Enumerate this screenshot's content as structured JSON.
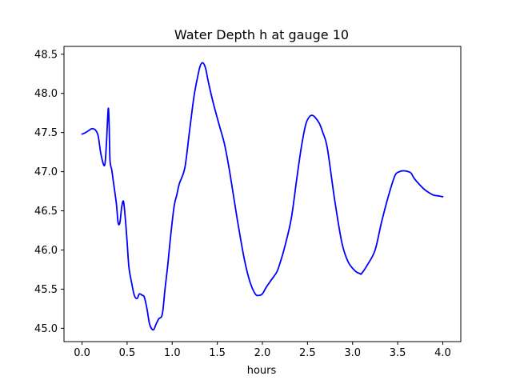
{
  "chart_data": {
    "type": "line",
    "title": "Water Depth h at gauge 10",
    "xlabel": "hours",
    "ylabel": "",
    "xlim": [
      -0.2,
      4.2
    ],
    "ylim": [
      44.83,
      48.6
    ],
    "xticks": [
      0.0,
      0.5,
      1.0,
      1.5,
      2.0,
      2.5,
      3.0,
      3.5,
      4.0
    ],
    "xtick_labels": [
      "0.0",
      "0.5",
      "1.0",
      "1.5",
      "2.0",
      "2.5",
      "3.0",
      "3.5",
      "4.0"
    ],
    "yticks": [
      45.0,
      45.5,
      46.0,
      46.5,
      47.0,
      47.5,
      48.0,
      48.5
    ],
    "ytick_labels": [
      "45.0",
      "45.5",
      "46.0",
      "46.5",
      "47.0",
      "47.5",
      "48.0",
      "48.5"
    ],
    "grid": false,
    "legend": "none",
    "series": [
      {
        "color": "#0000ff",
        "x": [
          0.0,
          0.04,
          0.08,
          0.11,
          0.15,
          0.18,
          0.21,
          0.25,
          0.27,
          0.29,
          0.3,
          0.31,
          0.33,
          0.35,
          0.38,
          0.4,
          0.42,
          0.44,
          0.46,
          0.48,
          0.5,
          0.52,
          0.55,
          0.58,
          0.61,
          0.63,
          0.64,
          0.67,
          0.69,
          0.72,
          0.75,
          0.79,
          0.82,
          0.85,
          0.89,
          0.92,
          0.95,
          0.98,
          1.02,
          1.05,
          1.08,
          1.14,
          1.19,
          1.24,
          1.28,
          1.31,
          1.34,
          1.37,
          1.4,
          1.45,
          1.52,
          1.58,
          1.64,
          1.72,
          1.8,
          1.86,
          1.92,
          1.96,
          2.0,
          2.04,
          2.1,
          2.16,
          2.2,
          2.25,
          2.32,
          2.38,
          2.43,
          2.48,
          2.52,
          2.55,
          2.58,
          2.63,
          2.67,
          2.72,
          2.8,
          2.88,
          2.95,
          3.03,
          3.08,
          3.1,
          3.17,
          3.25,
          3.32,
          3.4,
          3.47,
          3.52,
          3.55,
          3.58,
          3.62,
          3.65,
          3.68,
          3.73,
          3.79,
          3.85,
          3.9,
          3.96,
          4.0
        ],
        "y": [
          47.48,
          47.5,
          47.53,
          47.55,
          47.53,
          47.45,
          47.22,
          47.08,
          47.35,
          47.8,
          47.62,
          47.15,
          47.02,
          46.85,
          46.6,
          46.35,
          46.35,
          46.55,
          46.62,
          46.4,
          46.1,
          45.78,
          45.58,
          45.42,
          45.38,
          45.43,
          45.44,
          45.42,
          45.4,
          45.25,
          45.05,
          44.98,
          45.05,
          45.12,
          45.18,
          45.5,
          45.8,
          46.15,
          46.55,
          46.7,
          46.85,
          47.05,
          47.5,
          47.95,
          48.2,
          48.35,
          48.39,
          48.32,
          48.15,
          47.9,
          47.6,
          47.35,
          46.98,
          46.4,
          45.88,
          45.6,
          45.44,
          45.42,
          45.44,
          45.52,
          45.62,
          45.72,
          45.85,
          46.05,
          46.4,
          46.9,
          47.3,
          47.6,
          47.7,
          47.72,
          47.7,
          47.62,
          47.5,
          47.3,
          46.65,
          46.1,
          45.85,
          45.73,
          45.7,
          45.7,
          45.82,
          46.0,
          46.35,
          46.7,
          46.95,
          47.0,
          47.01,
          47.01,
          47.0,
          46.98,
          46.92,
          46.85,
          46.78,
          46.73,
          46.7,
          46.69,
          46.68
        ]
      }
    ]
  }
}
